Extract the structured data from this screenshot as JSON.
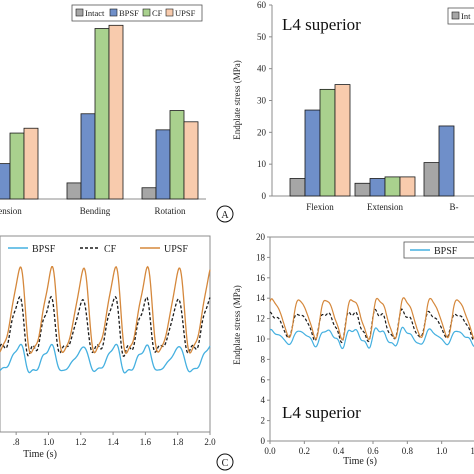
{
  "chart_data": [
    {
      "id": "top_left",
      "type": "bar",
      "title": "",
      "xlabel": "",
      "ylabel": "",
      "ylim": [
        0,
        60
      ],
      "categories": [
        "Extension",
        "Bending",
        "Rotation"
      ],
      "category_display": [
        "ension",
        "Bending",
        "Rotation"
      ],
      "legend": [
        "Intact",
        "BPSF",
        "CF",
        "UPSF"
      ],
      "series": [
        {
          "name": "Intact",
          "color": "#a6a6a6",
          "values": [
            1.5,
            5.0,
            3.5
          ]
        },
        {
          "name": "BPSF",
          "color": "#6f8fc9",
          "values": [
            11.0,
            26.5,
            21.5
          ]
        },
        {
          "name": "CF",
          "color": "#a9d18e",
          "values": [
            20.5,
            53.0,
            27.5
          ]
        },
        {
          "name": "UPSF",
          "color": "#f8cbad",
          "values": [
            22.0,
            54.0,
            24.0
          ]
        }
      ],
      "panel_label": "A"
    },
    {
      "id": "top_right",
      "type": "bar",
      "title": "L4 superior",
      "xlabel": "",
      "ylabel": "Endplate stress (MPa)",
      "ylim": [
        0,
        60
      ],
      "yticks": [
        "0",
        "10",
        "20",
        "30",
        "40",
        "50",
        "60"
      ],
      "categories": [
        "Flexion",
        "Extension",
        "Bending"
      ],
      "category_display": [
        "Flexion",
        "Extension",
        "B-"
      ],
      "legend": [
        "Int"
      ],
      "series": [
        {
          "name": "Intact",
          "color": "#a6a6a6",
          "values": [
            5.5,
            4.0,
            10.5
          ]
        },
        {
          "name": "BPSF",
          "color": "#6f8fc9",
          "values": [
            27.0,
            5.5,
            22.0
          ]
        },
        {
          "name": "CF",
          "color": "#a9d18e",
          "values": [
            33.5,
            6.0,
            null
          ]
        },
        {
          "name": "UPSF",
          "color": "#f8cbad",
          "values": [
            35.0,
            6.0,
            null
          ]
        }
      ]
    },
    {
      "id": "bottom_left",
      "type": "line",
      "title": "",
      "xlabel": "Time (s)",
      "ylabel": "",
      "xlim": [
        0.7,
        2.0
      ],
      "xticks": [
        ".8",
        "1.0",
        "1.2",
        "1.4",
        "1.6",
        "1.8",
        "2.0"
      ],
      "legend": [
        "BPSF",
        "CF",
        "UPSF"
      ],
      "series": [
        {
          "name": "BPSF",
          "color": "#45b0e0",
          "style": "solid"
        },
        {
          "name": "CF",
          "color": "#1a1a1a",
          "style": "dashed"
        },
        {
          "name": "UPSF",
          "color": "#d5883c",
          "style": "solid"
        }
      ],
      "panel_label": "C"
    },
    {
      "id": "bottom_right",
      "type": "line",
      "title": "L4 superior",
      "xlabel": "Time (s)",
      "ylabel": "Endplate stress (MPa)",
      "xlim": [
        0.0,
        1.2
      ],
      "ylim": [
        0,
        20
      ],
      "xticks": [
        "0.0",
        "0.2",
        "0.4",
        "0.6",
        "0.8",
        "1.0",
        "1.2"
      ],
      "yticks": [
        "0",
        "2",
        "4",
        "6",
        "8",
        "10",
        "12",
        "14",
        "16",
        "18",
        "20"
      ],
      "legend": [
        "BPSF"
      ],
      "series": [
        {
          "name": "BPSF",
          "color": "#45b0e0",
          "style": "solid"
        },
        {
          "name": "CF",
          "color": "#1a1a1a",
          "style": "dashed"
        },
        {
          "name": "UPSF",
          "color": "#d5883c",
          "style": "solid"
        }
      ]
    }
  ]
}
